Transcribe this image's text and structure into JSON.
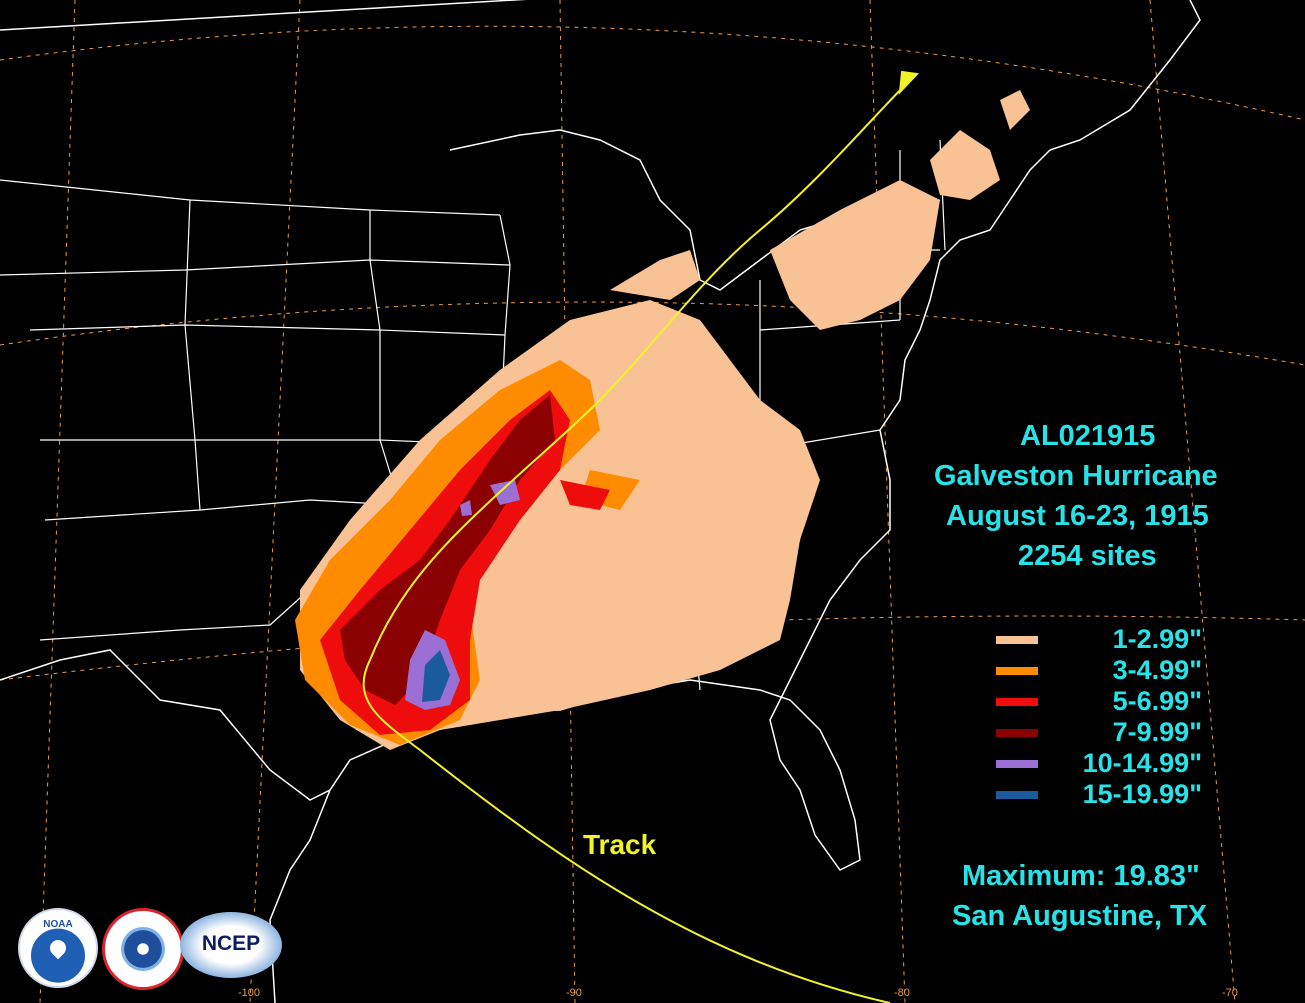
{
  "storm": {
    "id": "AL021915",
    "name": "Galveston Hurricane",
    "dates": "August 16-23, 1915",
    "sites": "2254 sites"
  },
  "legend": [
    {
      "label": "1-2.99\"",
      "color": "#f9c294"
    },
    {
      "label": "3-4.99\"",
      "color": "#ff8c00"
    },
    {
      "label": "5-6.99\"",
      "color": "#ee0c0c"
    },
    {
      "label": "7-9.99\"",
      "color": "#8b0000"
    },
    {
      "label": "10-14.99\"",
      "color": "#9b6fd4"
    },
    {
      "label": "15-19.99\"",
      "color": "#1b5a9c"
    }
  ],
  "maximum": {
    "value": "Maximum: 19.83\"",
    "location": "San Augustine, TX"
  },
  "track_label": "Track",
  "longitude_ticks": [
    "-100",
    "-90",
    "-80",
    "-70"
  ],
  "logos": {
    "noaa": "NOAA",
    "nws": "NATIONAL WEATHER SERVICE",
    "ncep": "NCEP"
  }
}
